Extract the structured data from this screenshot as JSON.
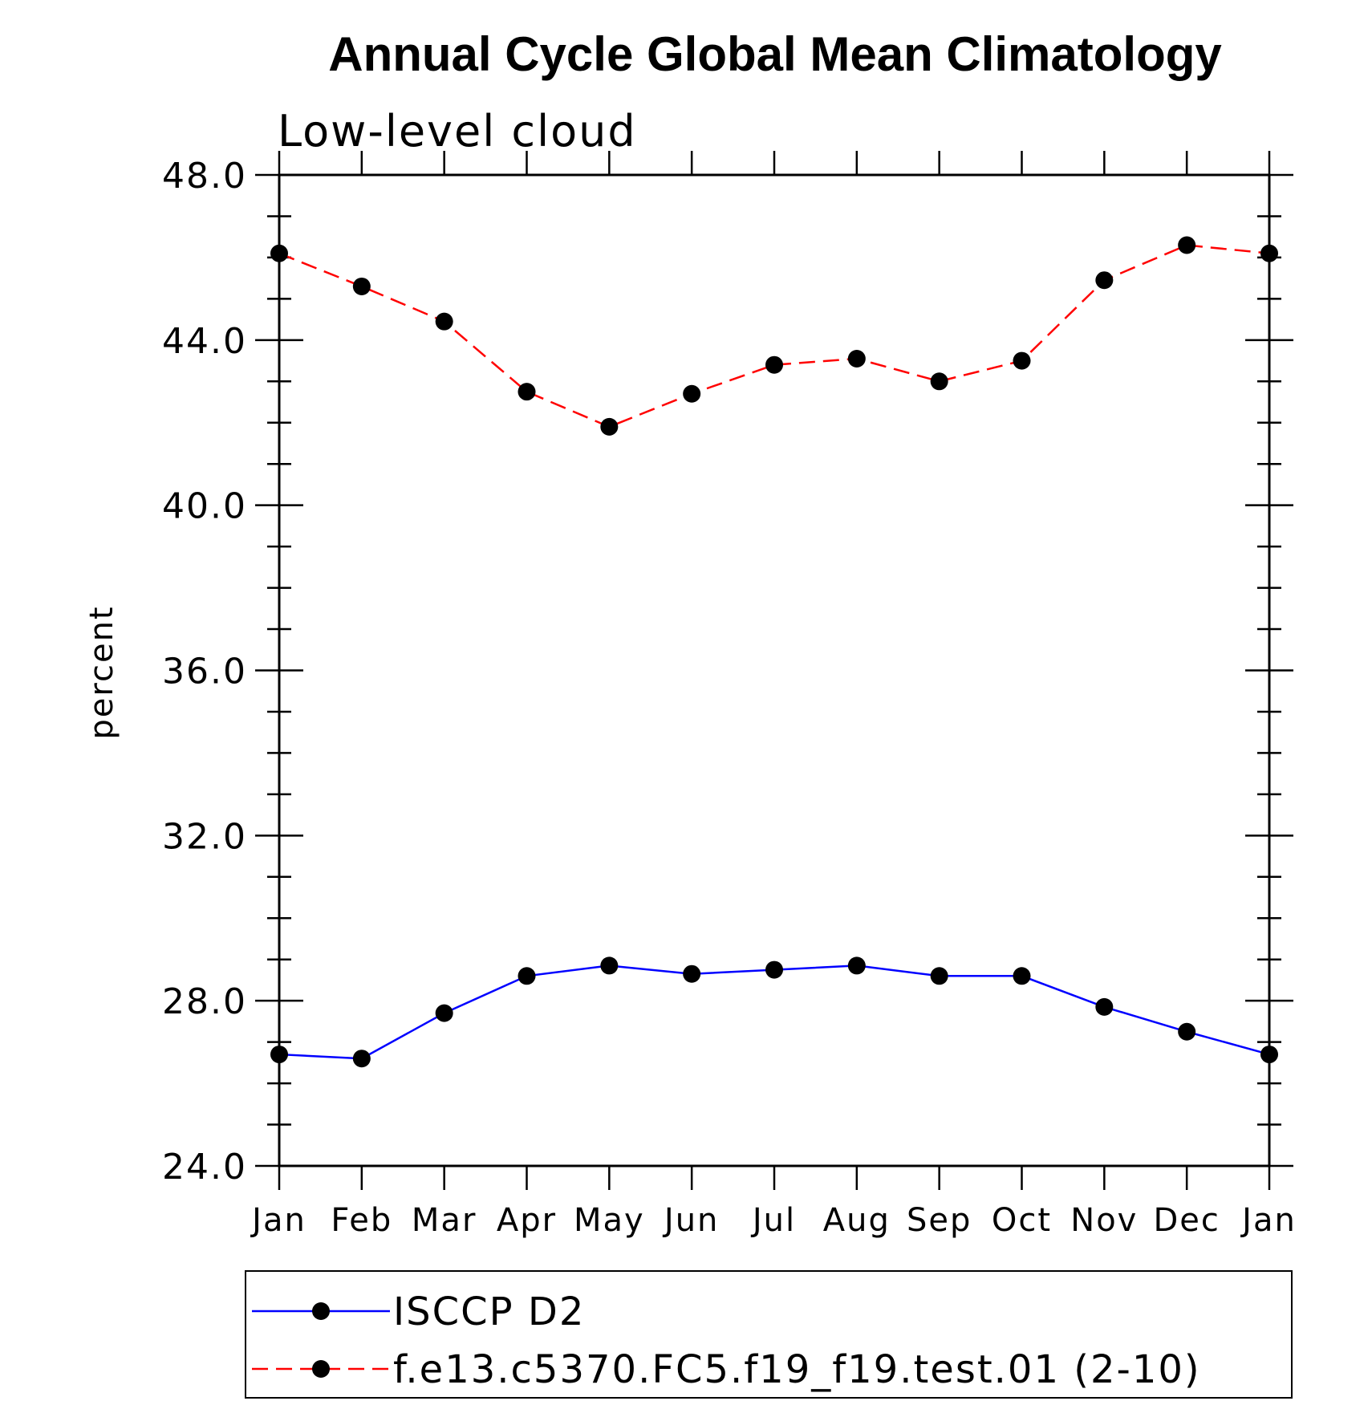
{
  "chart_data": {
    "type": "line",
    "title": "Annual Cycle Global Mean Climatology",
    "subtitle": "Low-level cloud",
    "xlabel": "",
    "ylabel": "percent",
    "categories": [
      "Jan",
      "Feb",
      "Mar",
      "Apr",
      "May",
      "Jun",
      "Jul",
      "Aug",
      "Sep",
      "Oct",
      "Nov",
      "Dec",
      "Jan"
    ],
    "ylim": [
      24.0,
      48.0
    ],
    "yticks": [
      "24.0",
      "28.0",
      "32.0",
      "36.0",
      "40.0",
      "44.0",
      "48.0"
    ],
    "grid": false,
    "legend_position": "bottom",
    "series": [
      {
        "name": "ISCCP D2",
        "color": "#0000ff",
        "line_style": "solid",
        "marker": "filled-circle",
        "values": [
          26.7,
          26.6,
          27.7,
          28.6,
          28.85,
          28.65,
          28.75,
          28.85,
          28.6,
          28.6,
          27.85,
          27.25,
          26.7
        ]
      },
      {
        "name": "f.e13.c5370.FC5.f19_f19.test.01 (2-10)",
        "color": "#ff0000",
        "line_style": "dashed",
        "marker": "filled-circle",
        "values": [
          46.1,
          45.3,
          44.45,
          42.75,
          41.9,
          42.7,
          43.4,
          43.55,
          43.0,
          43.5,
          45.45,
          46.3,
          46.1
        ]
      }
    ]
  }
}
